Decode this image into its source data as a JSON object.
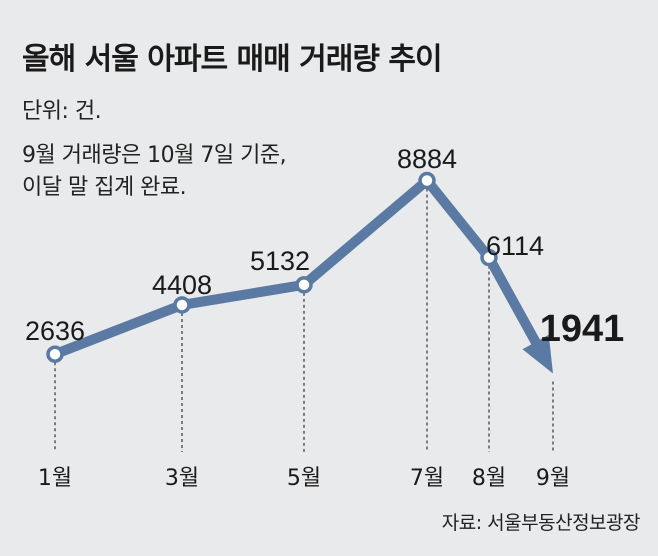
{
  "chart_data": {
    "type": "line",
    "title": "올해 서울 아파트 매매 거래량 추이",
    "unit_label": "단위: 건.",
    "note_lines": [
      "9월 거래량은 10월 7일 기준,",
      "이달 말 집계 완료."
    ],
    "source": "자료: 서울부동산정보광장",
    "x": [
      "1월",
      "3월",
      "5월",
      "7월",
      "8월",
      "9월"
    ],
    "y": [
      2636,
      4408,
      5132,
      8884,
      6114,
      1941
    ],
    "labels": [
      "2636",
      "4408",
      "5132",
      "8884",
      "6114",
      "1941"
    ],
    "highlight_last": true,
    "color": "#5b7aa3",
    "grid": false
  }
}
